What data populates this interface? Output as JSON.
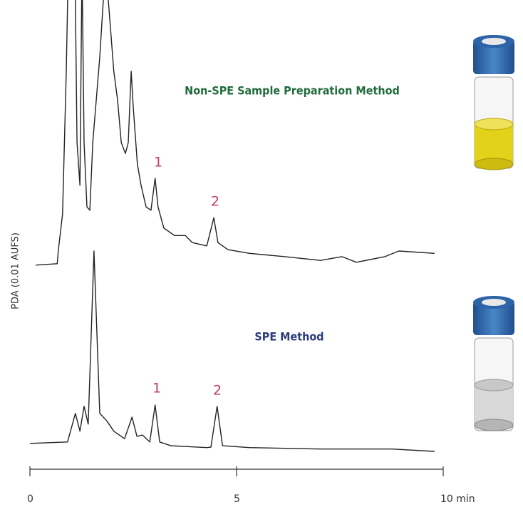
{
  "chart_data": {
    "type": "line",
    "y_label": "PDA (0.01 AUFS)",
    "xlim": [
      0,
      10
    ],
    "xticks": [
      0,
      5,
      {
        "value": 10,
        "label": "10 min"
      }
    ],
    "ylim": [
      0,
      100
    ],
    "axis_color": "#333333",
    "series": [
      {
        "name": "Non-SPE Sample Preparation Method",
        "color": "#222222",
        "label_color": "#1f6b3a",
        "peak_labels": [
          "1",
          "2"
        ],
        "peak_label_color": "#c0405a",
        "x": [
          0.14,
          0.66,
          0.69,
          0.79,
          0.88,
          0.93,
          1.09,
          1.14,
          1.21,
          1.26,
          1.31,
          1.38,
          1.45,
          1.52,
          1.69,
          1.83,
          1.95,
          2.03,
          2.12,
          2.21,
          2.31,
          2.38,
          2.45,
          2.5,
          2.6,
          2.69,
          2.81,
          2.93,
          3.03,
          3.1,
          3.24,
          3.5,
          3.76,
          3.93,
          4.28,
          4.45,
          4.55,
          4.79,
          5.31,
          6.17,
          7.03,
          7.55,
          7.9,
          8.59,
          8.93,
          9.79
        ],
        "values": [
          43.5,
          43.8,
          46.8,
          54.4,
          84.8,
          107.6,
          107.6,
          69.6,
          60.5,
          107.6,
          69.6,
          55.9,
          55.2,
          69.6,
          87.8,
          107.6,
          93.9,
          84.8,
          78.7,
          69.6,
          67.3,
          69.6,
          84.8,
          77.2,
          65.0,
          60.5,
          55.9,
          55.2,
          62.0,
          55.9,
          51.4,
          49.8,
          49.8,
          48.3,
          47.6,
          53.6,
          48.3,
          46.8,
          46.0,
          45.3,
          44.5,
          45.3,
          44.1,
          45.3,
          46.5,
          46.0
        ]
      },
      {
        "name": "SPE Method",
        "color": "#222222",
        "label_color": "#2b3a7a",
        "peak_labels": [
          "1",
          "2"
        ],
        "peak_label_color": "#c0405a",
        "x": [
          0,
          0.91,
          1.1,
          1.21,
          1.31,
          1.41,
          1.55,
          1.69,
          1.86,
          2.03,
          2.29,
          2.47,
          2.59,
          2.72,
          2.9,
          3.03,
          3.14,
          3.41,
          4.28,
          4.38,
          4.53,
          4.66,
          5.31,
          7.03,
          8.76,
          9.79
        ],
        "values": [
          5.5,
          5.8,
          11.9,
          8.1,
          13.4,
          9.6,
          46.5,
          11.9,
          10.3,
          8.1,
          6.5,
          11.1,
          7.0,
          7.3,
          5.8,
          13.7,
          5.8,
          5.0,
          4.6,
          4.7,
          13.4,
          5.0,
          4.6,
          4.3,
          4.3,
          3.8
        ]
      }
    ]
  }
}
